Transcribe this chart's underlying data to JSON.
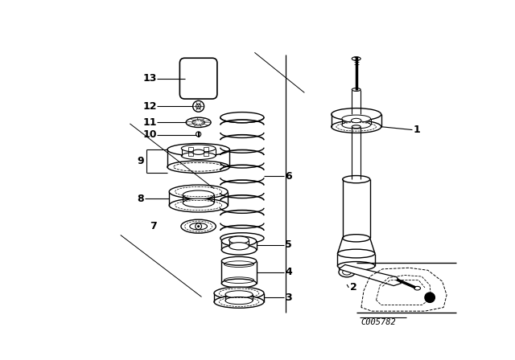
{
  "bg_color": "#ffffff",
  "line_color": "#000000",
  "fig_width": 6.4,
  "fig_height": 4.48,
  "dpi": 100,
  "watermark": "C005782"
}
